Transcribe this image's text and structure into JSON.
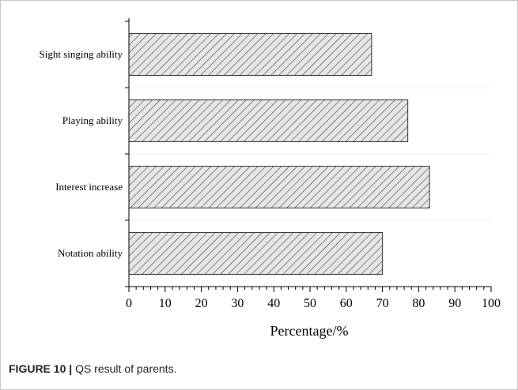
{
  "chart_data": {
    "type": "bar",
    "orientation": "horizontal",
    "categories": [
      "Sight singing ability",
      "Playing ability",
      "Interest increase",
      "Notation ability"
    ],
    "values": [
      67,
      77,
      83,
      70
    ],
    "xlabel": "Percentage/%",
    "xlim": [
      0,
      100
    ],
    "xticks": [
      0,
      10,
      20,
      30,
      40,
      50,
      60,
      70,
      80,
      90,
      100
    ],
    "grid": false,
    "bar_fill": "diagonal hatch",
    "colors": {
      "bar_fill": "#d9d9d9",
      "hatch": "#333333",
      "axis": "#000000"
    }
  },
  "caption": {
    "label": "FIGURE 10 |",
    "text": "QS result of parents."
  }
}
